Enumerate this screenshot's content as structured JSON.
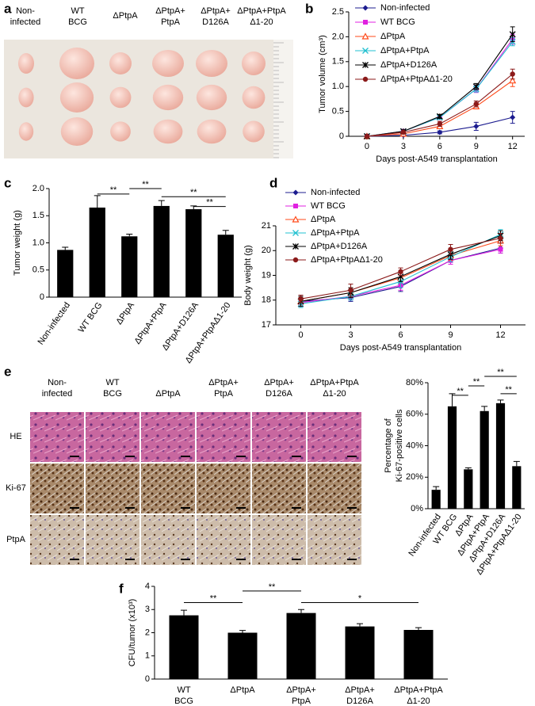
{
  "panel_labels": [
    "a",
    "b",
    "c",
    "d",
    "e",
    "f"
  ],
  "panel_a": {
    "columns": [
      [
        "Non-",
        "infected"
      ],
      [
        "WT",
        "BCG"
      ],
      [
        "ΔPtpA"
      ],
      [
        "ΔPtpA+",
        "PtpA"
      ],
      [
        "ΔPtpA+",
        "D126A"
      ],
      [
        "ΔPtpA+PtpA",
        "Δ1-20"
      ]
    ]
  },
  "panel_e_images": {
    "columns": [
      [
        "Non-",
        "infected"
      ],
      [
        "WT",
        "BCG"
      ],
      [
        "ΔPtpA"
      ],
      [
        "ΔPtpA+",
        "PtpA"
      ],
      [
        "ΔPtpA+",
        "D126A"
      ],
      [
        "ΔPtpA+PtpA",
        "Δ1-20"
      ]
    ],
    "rows": [
      "HE",
      "Ki-67",
      "PtpA"
    ]
  },
  "chart_data": [
    {
      "type": "line",
      "ylabel": "Tumor volume (cm³)",
      "xlabel": "Days post-A549 transplantation",
      "x": [
        0,
        3,
        6,
        9,
        12
      ],
      "xlim": [
        -1.5,
        13
      ],
      "xticks": [
        0,
        3,
        6,
        9,
        12
      ],
      "ylim": [
        0,
        2.5
      ],
      "yticks": [
        0,
        0.5,
        {
          "value": 1,
          "label": "1.0"
        },
        1.5,
        {
          "value": 2,
          "label": "2.0"
        },
        2.5
      ],
      "legend": "upper left",
      "series": [
        {
          "name": "Non-infected",
          "color": "#1c1c8f",
          "marker": "diamond",
          "values": [
            0,
            0.02,
            0.08,
            0.2,
            0.38
          ],
          "errors": [
            0,
            0.02,
            0.03,
            0.08,
            0.12
          ]
        },
        {
          "name": "WT BCG",
          "color": "#e020e0",
          "marker": "square",
          "values": [
            0,
            0.1,
            0.38,
            0.95,
            1.95
          ],
          "errors": [
            0,
            0.03,
            0.04,
            0.07,
            0.1
          ]
        },
        {
          "name": "ΔPtpA",
          "color": "#ff4a1a",
          "marker": "triangle",
          "values": [
            0,
            0.05,
            0.2,
            0.6,
            1.12
          ],
          "errors": [
            0,
            0.02,
            0.04,
            0.05,
            0.12
          ]
        },
        {
          "name": "ΔPtpA+PtpA",
          "color": "#22c0d0",
          "marker": "x",
          "values": [
            0,
            0.1,
            0.38,
            0.95,
            1.9
          ],
          "errors": [
            0,
            0.03,
            0.04,
            0.06,
            0.08
          ]
        },
        {
          "name": "ΔPtpA+D126A",
          "color": "#000000",
          "marker": "star",
          "values": [
            0,
            0.1,
            0.4,
            1.0,
            2.05
          ],
          "errors": [
            0,
            0.03,
            0.04,
            0.06,
            0.15
          ]
        },
        {
          "name": "ΔPtpA+PtpAΔ1-20",
          "color": "#8b1a1a",
          "marker": "circle",
          "values": [
            0,
            0.08,
            0.25,
            0.65,
            1.25
          ],
          "errors": [
            0,
            0.02,
            0.05,
            0.06,
            0.1
          ]
        }
      ]
    },
    {
      "type": "bar",
      "ylabel": "Tumor weight (g)",
      "categories": [
        "Non-infected",
        "WT BCG",
        "ΔPtpA",
        "ΔPtpA+PtpA",
        "ΔPtpA+D126A",
        "ΔPtpA+PtpAΔ1-20"
      ],
      "values": [
        0.87,
        1.65,
        1.12,
        1.68,
        1.62,
        1.15
      ],
      "errors": [
        0.05,
        0.22,
        0.04,
        0.1,
        0.06,
        0.08
      ],
      "color": "#000000",
      "ylim": [
        0,
        2
      ],
      "yticks": [
        0,
        0.5,
        {
          "value": 1,
          "label": "1.0"
        },
        1.5,
        {
          "value": 2,
          "label": "2.0"
        }
      ],
      "annotations": [
        "**",
        "**",
        "**",
        "**"
      ]
    },
    {
      "type": "line",
      "ylabel": "Body weight (g)",
      "xlabel": "Days post-A549 transplantation",
      "x": [
        0,
        3,
        6,
        9,
        12
      ],
      "xlim": [
        -1.5,
        13.5
      ],
      "xticks": [
        0,
        3,
        6,
        9,
        12
      ],
      "ylim": [
        17,
        21
      ],
      "yticks": [
        17,
        18,
        19,
        20,
        21
      ],
      "legend": "upper left",
      "series": [
        {
          "name": "Non-infected",
          "color": "#1c1c8f",
          "marker": "diamond",
          "values": [
            17.95,
            18.1,
            18.55,
            19.6,
            20.1
          ],
          "errors": [
            0.15,
            0.15,
            0.2,
            0.15,
            0.2
          ]
        },
        {
          "name": "WT BCG",
          "color": "#e020e0",
          "marker": "square",
          "values": [
            17.9,
            18.15,
            18.6,
            19.6,
            20.05
          ],
          "errors": [
            0.15,
            0.15,
            0.2,
            0.15,
            0.15
          ]
        },
        {
          "name": "ΔPtpA",
          "color": "#ff4a1a",
          "marker": "triangle",
          "values": [
            17.95,
            18.3,
            18.9,
            19.8,
            20.4
          ],
          "errors": [
            0.15,
            0.2,
            0.2,
            0.2,
            0.2
          ]
        },
        {
          "name": "ΔPtpA+PtpA",
          "color": "#22c0d0",
          "marker": "x",
          "values": [
            17.85,
            18.15,
            18.75,
            19.75,
            20.65
          ],
          "errors": [
            0.15,
            0.15,
            0.25,
            0.2,
            0.2
          ]
        },
        {
          "name": "ΔPtpA+D126A",
          "color": "#000000",
          "marker": "star",
          "values": [
            17.95,
            18.3,
            18.95,
            19.85,
            20.6
          ],
          "errors": [
            0.2,
            0.2,
            0.2,
            0.2,
            0.2
          ]
        },
        {
          "name": "ΔPtpA+PtpAΔ1-20",
          "color": "#8b1a1a",
          "marker": "circle",
          "values": [
            18.05,
            18.4,
            19.15,
            20.05,
            20.5
          ],
          "errors": [
            0.15,
            0.25,
            0.15,
            0.2,
            0.2
          ]
        }
      ]
    },
    {
      "type": "bar",
      "ylabel": [
        "Percentage of",
        "Ki-67-positive cells"
      ],
      "categories": [
        "Non-infected",
        "WT BCG",
        "ΔPtpA",
        "ΔPtpA+PtpA",
        "ΔPtpA+D126A",
        "ΔPtpA+PtpAΔ1-20"
      ],
      "values": [
        12,
        65,
        25,
        62,
        67,
        27
      ],
      "errors": [
        2,
        8,
        1,
        3,
        2,
        3
      ],
      "color": "#000000",
      "ylim": [
        0,
        80
      ],
      "yticks": [
        {
          "value": 0,
          "label": "0%"
        },
        {
          "value": 20,
          "label": "20%"
        },
        {
          "value": 40,
          "label": "40%"
        },
        {
          "value": 60,
          "label": "60%"
        },
        {
          "value": 80,
          "label": "80%"
        }
      ],
      "annotations": [
        "**",
        "**",
        "**",
        "**"
      ]
    },
    {
      "type": "bar",
      "ylabel": "CFU/tumor (x10³)",
      "categories": [
        [
          "WT",
          "BCG"
        ],
        [
          "ΔPtpA"
        ],
        [
          "ΔPtpA+",
          "PtpA"
        ],
        [
          "ΔPtpA+",
          "D126A"
        ],
        [
          "ΔPtpA+PtpA",
          "Δ1-20"
        ]
      ],
      "values": [
        2.75,
        2.0,
        2.85,
        2.27,
        2.12
      ],
      "errors": [
        0.22,
        0.1,
        0.15,
        0.12,
        0.1
      ],
      "color": "#000000",
      "ylim": [
        0,
        4
      ],
      "yticks": [
        0,
        1,
        2,
        3,
        4
      ],
      "annotations": [
        "**",
        "**",
        "*"
      ]
    }
  ]
}
